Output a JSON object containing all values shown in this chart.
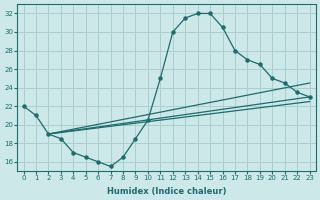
{
  "xlabel": "Humidex (Indice chaleur)",
  "bg_color": "#cce8e8",
  "grid_color": "#aacfcf",
  "line_color": "#1a6e6e",
  "xlim": [
    -0.5,
    23.5
  ],
  "ylim": [
    15.0,
    33.0
  ],
  "xticks": [
    0,
    1,
    2,
    3,
    4,
    5,
    6,
    7,
    8,
    9,
    10,
    11,
    12,
    13,
    14,
    15,
    16,
    17,
    18,
    19,
    20,
    21,
    22,
    23
  ],
  "yticks": [
    16,
    18,
    20,
    22,
    24,
    26,
    28,
    30,
    32
  ],
  "curve_x": [
    0,
    1,
    2,
    3,
    4,
    5,
    6,
    7,
    8,
    9,
    10,
    11,
    12,
    13,
    14,
    15,
    16,
    17,
    18,
    19,
    20,
    21,
    22,
    23
  ],
  "curve_y": [
    22,
    21,
    19,
    18.5,
    17,
    16.5,
    16,
    15.5,
    16.5,
    18.5,
    20.5,
    25,
    30,
    31.5,
    32,
    32,
    30.5,
    28,
    27,
    26.5,
    25,
    24.5,
    23.5,
    23
  ],
  "line1_x": [
    2,
    23
  ],
  "line1_y": [
    19,
    23
  ],
  "line2_x": [
    2,
    23
  ],
  "line2_y": [
    19,
    22.5
  ],
  "line3_x": [
    2,
    23
  ],
  "line3_y": [
    19,
    24.5
  ],
  "xlabel_fontsize": 6,
  "tick_fontsize": 5
}
